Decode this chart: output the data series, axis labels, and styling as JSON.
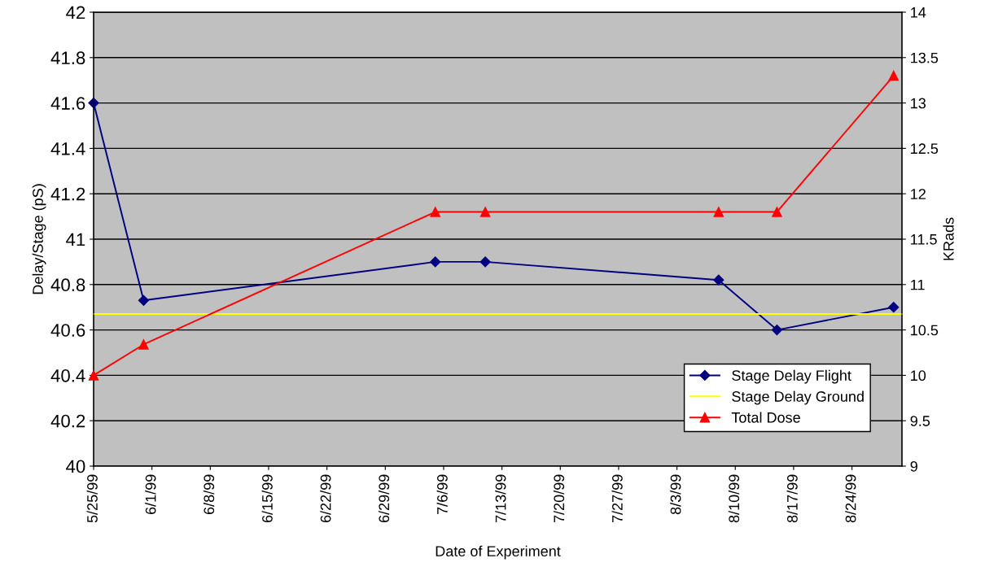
{
  "chart_data": {
    "type": "line",
    "xlabel": "Date of Experiment",
    "ylabel": "Delay/Stage (pS)",
    "y2label": "KRads",
    "xlim": [
      "1999-05-25",
      "1999-08-30"
    ],
    "xticks": [
      {
        "value": "1999-05-25",
        "label": "5/25/99"
      },
      {
        "value": "1999-06-01",
        "label": "6/1/99"
      },
      {
        "value": "1999-06-08",
        "label": "6/8/99"
      },
      {
        "value": "1999-06-15",
        "label": "6/15/99"
      },
      {
        "value": "1999-06-22",
        "label": "6/22/99"
      },
      {
        "value": "1999-06-29",
        "label": "6/29/99"
      },
      {
        "value": "1999-07-06",
        "label": "7/6/99"
      },
      {
        "value": "1999-07-13",
        "label": "7/13/99"
      },
      {
        "value": "1999-07-20",
        "label": "7/20/99"
      },
      {
        "value": "1999-07-27",
        "label": "7/27/99"
      },
      {
        "value": "1999-08-03",
        "label": "8/3/99"
      },
      {
        "value": "1999-08-10",
        "label": "8/10/99"
      },
      {
        "value": "1999-08-17",
        "label": "8/17/99"
      },
      {
        "value": "1999-08-24",
        "label": "8/24/99"
      }
    ],
    "ylim": [
      40,
      42
    ],
    "yticks": [
      40,
      40.2,
      40.4,
      40.6,
      40.8,
      41,
      41.2,
      41.4,
      41.6,
      41.8,
      42
    ],
    "y2lim": [
      9,
      14
    ],
    "y2ticks": [
      9,
      9.5,
      10,
      10.5,
      11,
      11.5,
      12,
      12.5,
      13,
      13.5,
      14
    ],
    "grid": "y",
    "legend": "bottom right",
    "series": [
      {
        "name": "Stage Delay Flight",
        "color": "#000080",
        "marker": "diamond",
        "x": [
          "1999-05-25",
          "1999-05-31",
          "1999-07-05",
          "1999-07-11",
          "1999-08-08",
          "1999-08-15",
          "1999-08-29"
        ],
        "values": [
          41.6,
          40.73,
          40.9,
          40.9,
          40.82,
          40.6,
          40.7
        ]
      },
      {
        "name": "Stage Delay Ground",
        "color": "#ffff00",
        "marker": "none",
        "x": [
          "1999-05-25",
          "1999-08-30"
        ],
        "values": [
          40.67,
          40.67
        ]
      },
      {
        "name": "Total Dose",
        "color": "#ff0000",
        "marker": "triangle",
        "axis": "y2",
        "x": [
          "1999-05-25",
          "1999-05-31",
          "1999-07-05",
          "1999-07-11",
          "1999-08-08",
          "1999-08-15",
          "1999-08-29"
        ],
        "values": [
          10.0,
          10.34,
          11.8,
          11.8,
          11.8,
          11.8,
          13.3
        ]
      }
    ]
  }
}
